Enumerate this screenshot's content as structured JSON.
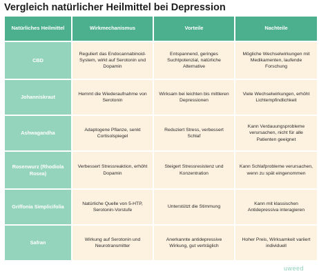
{
  "title": "Vergleich natürlicher Heilmittel bei Depression",
  "columns": [
    "Natürliches Heilmittel",
    "Wirkmechanismus",
    "Vorteile",
    "Nachteile"
  ],
  "rows": [
    {
      "remedy": "CBD",
      "mechanism": "Reguliert das Endocannabinoid-System, wirkt auf Serotonin und Dopamin",
      "advantages": "Entspannend, geringes Suchtpotenzial, natürliche Alternative",
      "disadvantages": "Mögliche Wechselwirkungen mit Medikamenten, laufende Forschung"
    },
    {
      "remedy": "Johanniskraut",
      "mechanism": "Hemmt die Wiederaufnahme von Serotonin",
      "advantages": "Wirksam bei leichten bis mittleren Depressionen",
      "disadvantages": "Viele Wechselwirkungen, erhöht Lichtempfindlichkeit"
    },
    {
      "remedy": "Ashwagandha",
      "mechanism": "Adaptogene Pflanze, senkt Cortisolspiegel",
      "advantages": "Reduziert Stress, verbessert Schlaf",
      "disadvantages": "Kann Verdauungsprobleme verursachen, nicht für alle Patienten geeignet"
    },
    {
      "remedy": "Rosenwurz (Rhodiola Rosea)",
      "mechanism": "Verbessert Stressreaktion, erhöht Dopamin",
      "advantages": "Steigert Stressresistenz und Konzentration",
      "disadvantages": "Kann Schlafprobleme verursachen, wenn zu spät eingenommen"
    },
    {
      "remedy": "Griffonia Simplicifolia",
      "mechanism": "Natürliche Quelle von 5-HTP, Serotonin-Vorstufe",
      "advantages": "Unterstützt die Stimmung",
      "disadvantages": "Kann mit klassischen Antidepressiva interagieren"
    },
    {
      "remedy": "Safran",
      "mechanism": "Wirkung auf Serotonin und Neurotransmitter",
      "advantages": "Anerkannte antidepressive Wirkung, gut verträglich",
      "disadvantages": "Hoher Preis, Wirksamkeit variiert individuell"
    }
  ],
  "logo": "uweed",
  "colors": {
    "header_bg": "#4caf8e",
    "first_col_bg": "#94d4bc",
    "cell_bg": "#fdf1e0"
  }
}
